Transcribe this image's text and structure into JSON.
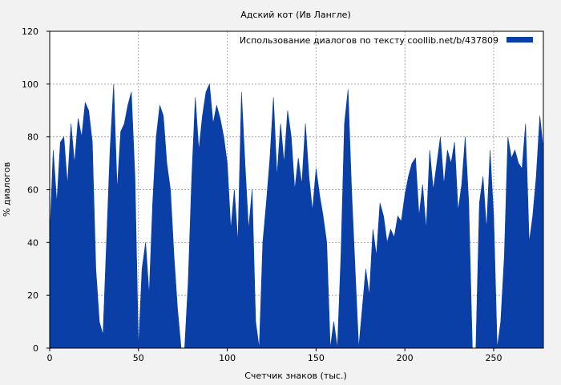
{
  "chart_data": {
    "type": "area",
    "title": "Адский кот (Ив Лангле)",
    "xlabel": "Счетчик знаков (тыс.)",
    "ylabel": "% диалогов",
    "xlim": [
      0,
      278
    ],
    "ylim": [
      0,
      120
    ],
    "x_ticks": [
      0,
      50,
      100,
      150,
      200,
      250
    ],
    "y_ticks": [
      0,
      20,
      40,
      60,
      80,
      100,
      120
    ],
    "grid": true,
    "legend_position": "top-right",
    "series": [
      {
        "name": "Использование диалогов по тексту  coollib.net/b/437809",
        "color": "#0a3fa8",
        "x": [
          0,
          2,
          4,
          6,
          8,
          10,
          12,
          14,
          16,
          18,
          20,
          22,
          24,
          26,
          28,
          30,
          32,
          34,
          36,
          38,
          40,
          42,
          44,
          46,
          48,
          50,
          52,
          54,
          56,
          58,
          60,
          62,
          64,
          66,
          68,
          70,
          72,
          74,
          76,
          78,
          80,
          82,
          84,
          86,
          88,
          90,
          92,
          94,
          96,
          98,
          100,
          102,
          104,
          106,
          108,
          110,
          112,
          114,
          116,
          118,
          120,
          122,
          124,
          126,
          128,
          130,
          132,
          134,
          136,
          138,
          140,
          142,
          144,
          146,
          148,
          150,
          152,
          154,
          156,
          158,
          160,
          162,
          164,
          166,
          168,
          170,
          172,
          174,
          176,
          178,
          180,
          182,
          184,
          186,
          188,
          190,
          192,
          194,
          196,
          198,
          200,
          202,
          204,
          206,
          208,
          210,
          212,
          214,
          216,
          218,
          220,
          222,
          224,
          226,
          228,
          230,
          232,
          234,
          236,
          238,
          240,
          242,
          244,
          246,
          248,
          250,
          252,
          254,
          256,
          258,
          260,
          262,
          264,
          266,
          268,
          270,
          272,
          274,
          276,
          278
        ],
        "y": [
          42,
          75,
          55,
          78,
          80,
          62,
          85,
          70,
          87,
          80,
          93,
          90,
          78,
          30,
          10,
          5,
          40,
          75,
          100,
          60,
          82,
          85,
          92,
          97,
          65,
          0,
          30,
          40,
          20,
          55,
          80,
          92,
          88,
          70,
          60,
          35,
          15,
          0,
          0,
          25,
          65,
          95,
          75,
          88,
          97,
          100,
          85,
          92,
          87,
          80,
          70,
          45,
          60,
          40,
          97,
          70,
          45,
          60,
          10,
          0,
          40,
          55,
          72,
          95,
          65,
          85,
          70,
          90,
          80,
          60,
          72,
          62,
          85,
          65,
          52,
          68,
          58,
          50,
          40,
          0,
          10,
          0,
          35,
          85,
          98,
          60,
          30,
          0,
          15,
          30,
          20,
          45,
          35,
          55,
          50,
          40,
          45,
          42,
          50,
          48,
          58,
          65,
          70,
          72,
          50,
          62,
          45,
          75,
          60,
          70,
          80,
          62,
          75,
          70,
          78,
          52,
          62,
          80,
          55,
          0,
          0,
          55,
          65,
          45,
          75,
          50,
          0,
          10,
          35,
          80,
          72,
          75,
          70,
          68,
          85,
          40,
          50,
          65,
          88,
          75
        ]
      }
    ]
  }
}
